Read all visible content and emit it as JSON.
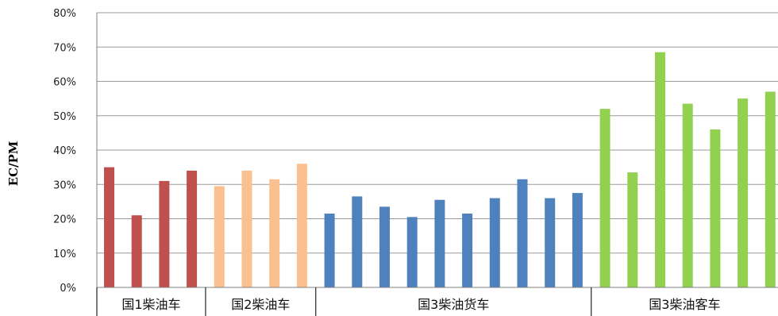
{
  "chart_data": {
    "type": "bar",
    "ylabel": "EC/PM",
    "ylim": [
      0,
      80
    ],
    "y_ticks": [
      "0%",
      "10%",
      "20%",
      "30%",
      "40%",
      "50%",
      "60%",
      "70%",
      "80%"
    ],
    "grid": true,
    "groups": [
      {
        "label": "国1柴油车",
        "color": "#c0504d",
        "values": [
          35,
          21,
          31,
          34
        ]
      },
      {
        "label": "国2柴油车",
        "color": "#fac090",
        "values": [
          29.5,
          34,
          31.5,
          36
        ]
      },
      {
        "label": "国3柴油货车",
        "color": "#4f81bd",
        "values": [
          21.5,
          26.5,
          23.5,
          20.5,
          25.5,
          21.5,
          26,
          31.5,
          26,
          27.5
        ]
      },
      {
        "label": "国3柴油客车",
        "color": "#92d050",
        "values": [
          52,
          33.5,
          68.5,
          53.5,
          46,
          55,
          57
        ]
      }
    ]
  }
}
